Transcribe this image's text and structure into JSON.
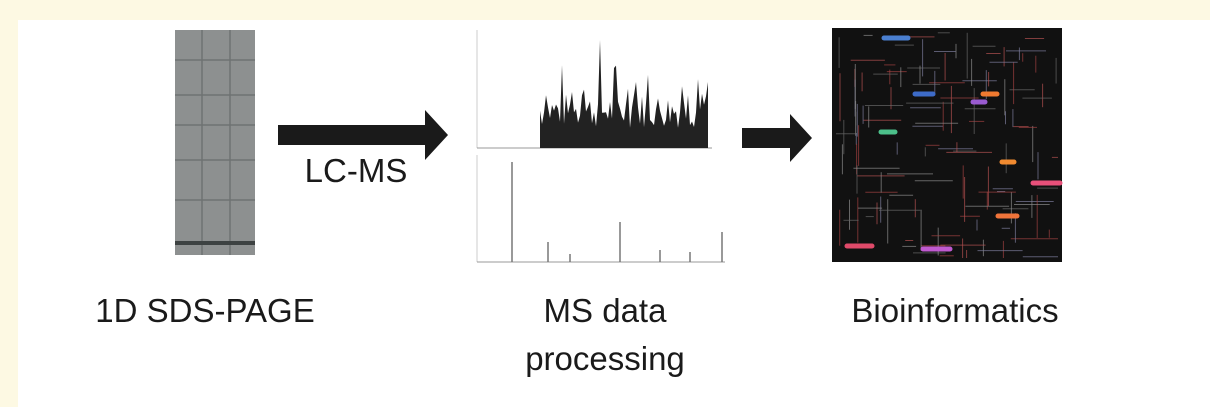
{
  "steps": [
    {
      "label": "1D SDS-PAGE"
    },
    {
      "label_lines": [
        "MS data",
        "processing"
      ]
    },
    {
      "label": "Bioinformatics"
    }
  ],
  "arrows": [
    {
      "label": "LC-MS"
    }
  ]
}
